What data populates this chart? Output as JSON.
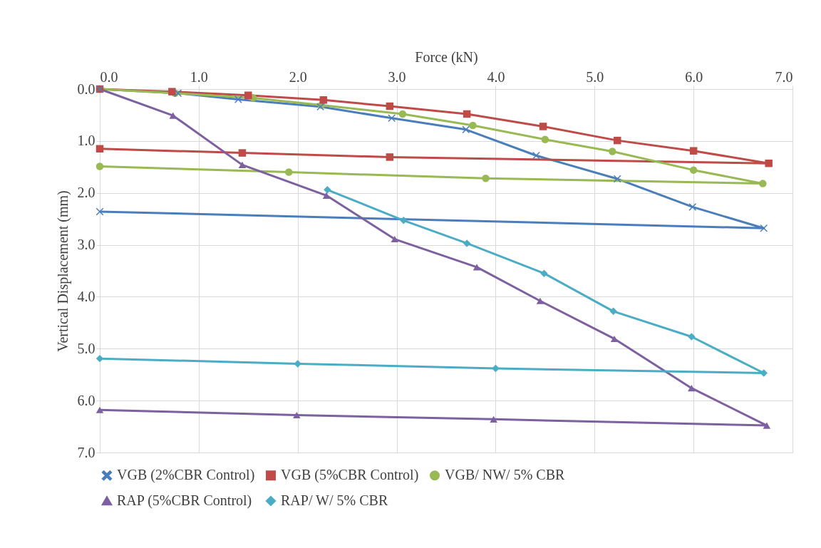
{
  "chart_data": {
    "type": "line",
    "xlabel": "Force (kN)",
    "ylabel": "Vertical Displacement (mm)",
    "xlim": [
      0,
      7
    ],
    "xticks": [
      {
        "value": 0,
        "label": "0.0"
      },
      {
        "value": 1,
        "label": "1.0"
      },
      {
        "value": 2,
        "label": "2.0"
      },
      {
        "value": 3,
        "label": "3.0"
      },
      {
        "value": 4,
        "label": "4.0"
      },
      {
        "value": 5,
        "label": "5.0"
      },
      {
        "value": 6,
        "label": "6.0"
      },
      {
        "value": 7,
        "label": "7.0"
      }
    ],
    "ylim": [
      7,
      0
    ],
    "yticks": [
      {
        "value": 0,
        "label": "0.0"
      },
      {
        "value": 1,
        "label": "1.0"
      },
      {
        "value": 2,
        "label": "2.0"
      },
      {
        "value": 3,
        "label": "3.0"
      },
      {
        "value": 4,
        "label": "4.0"
      },
      {
        "value": 5,
        "label": "5.0"
      },
      {
        "value": 6,
        "label": "6.0"
      },
      {
        "value": 7,
        "label": "7.0"
      }
    ],
    "grid": true,
    "legend": "bottom",
    "series": [
      {
        "name": "VGB (2%CBR Control)",
        "color": "#4a7ebb",
        "marker": "cross",
        "x": [
          0,
          0.79,
          1.4,
          2.23,
          2.95,
          3.7,
          4.41,
          5.23,
          5.99,
          6.71,
          0
        ],
        "values": [
          0,
          0.08,
          0.2,
          0.34,
          0.56,
          0.78,
          1.28,
          1.73,
          2.27,
          2.68,
          2.36
        ]
      },
      {
        "name": "VGB (5%CBR Control)",
        "color": "#be4b48",
        "marker": "square",
        "x": [
          0,
          0.73,
          1.5,
          2.26,
          2.93,
          3.71,
          4.48,
          5.23,
          6.0,
          6.76,
          2.93,
          1.44,
          0
        ],
        "values": [
          0,
          0.05,
          0.12,
          0.21,
          0.33,
          0.48,
          0.72,
          0.99,
          1.19,
          1.43,
          1.31,
          1.23,
          1.15
        ]
      },
      {
        "name": "VGB/ NW/ 5% CBR",
        "color": "#98b954",
        "marker": "circle",
        "x": [
          0,
          0.76,
          1.55,
          2.24,
          3.06,
          3.77,
          4.5,
          5.18,
          6.0,
          6.7,
          3.9,
          1.91,
          0
        ],
        "values": [
          0,
          0.08,
          0.17,
          0.31,
          0.48,
          0.7,
          0.97,
          1.2,
          1.56,
          1.82,
          1.72,
          1.6,
          1.49
        ]
      },
      {
        "name": "RAP (5%CBR Control)",
        "color": "#7d60a0",
        "marker": "triangle",
        "x": [
          0,
          0.74,
          1.44,
          2.29,
          2.98,
          3.81,
          4.45,
          5.2,
          5.98,
          6.74,
          3.98,
          1.99,
          0
        ],
        "values": [
          0,
          0.51,
          1.46,
          2.05,
          2.89,
          3.43,
          4.08,
          4.81,
          5.76,
          6.48,
          6.36,
          6.28,
          6.18
        ]
      },
      {
        "name": "RAP/ W/ 5% CBR",
        "color": "#4bacc6",
        "marker": "diamond",
        "x": [
          2.3,
          3.07,
          3.71,
          4.49,
          5.19,
          5.98,
          6.71,
          4.0,
          2.0,
          0
        ],
        "values": [
          1.94,
          2.53,
          2.97,
          3.55,
          4.28,
          4.77,
          5.47,
          5.38,
          5.29,
          5.19
        ]
      }
    ]
  }
}
